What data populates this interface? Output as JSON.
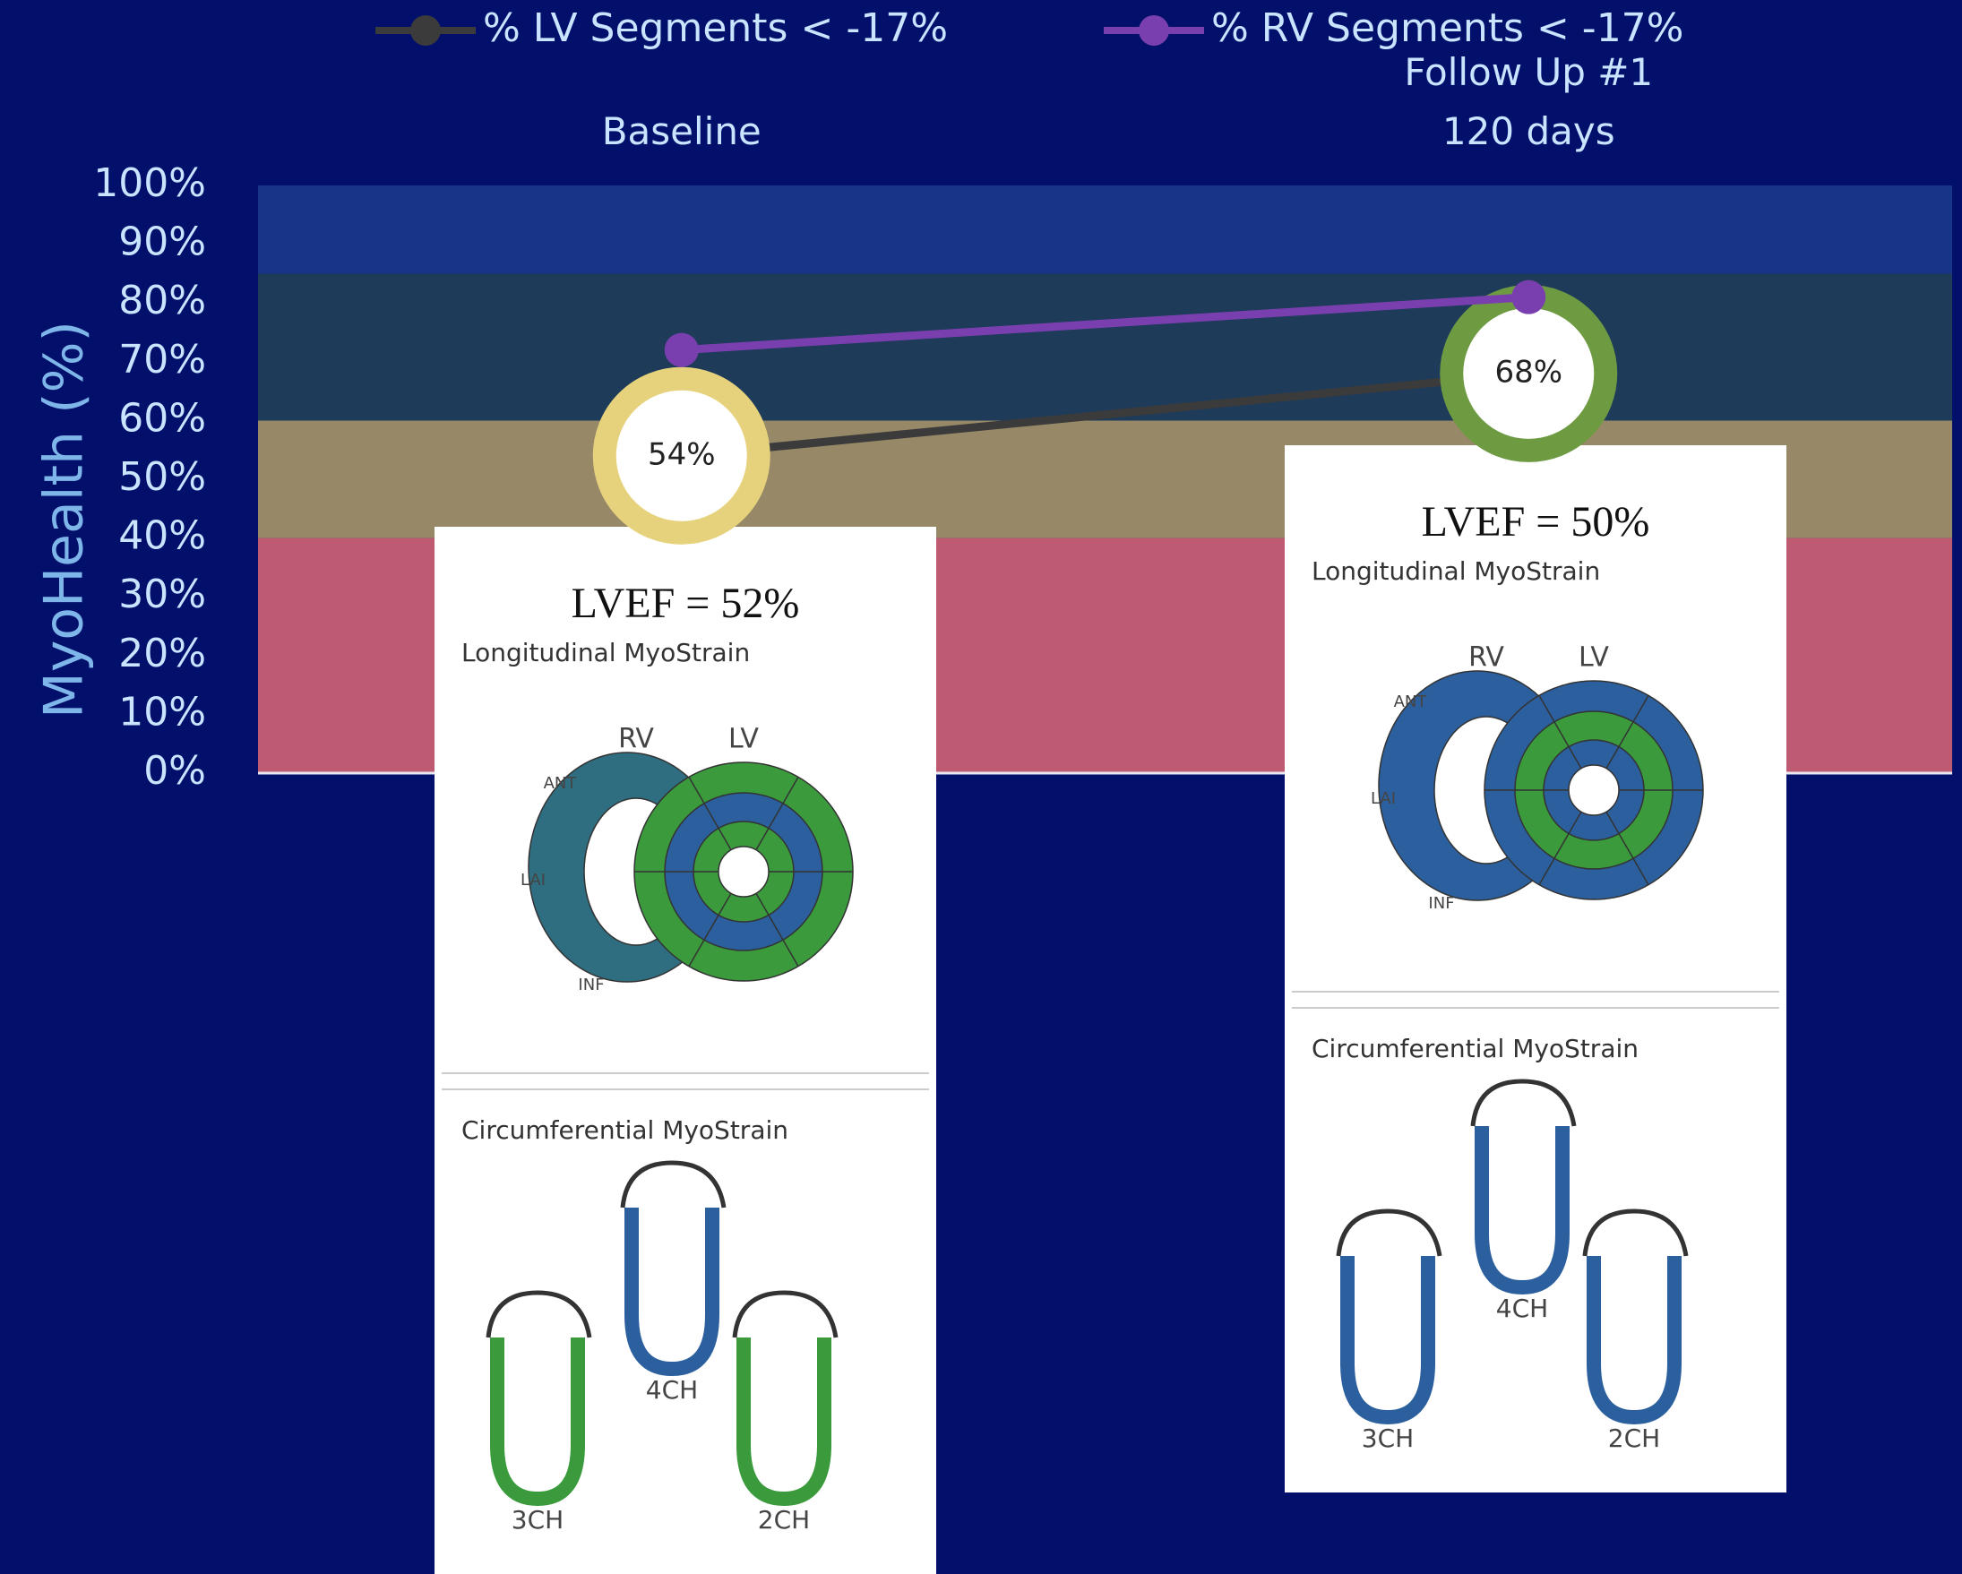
{
  "chart_data": {
    "type": "line",
    "y_label": "MyoHealth (%)",
    "categories": [
      "Baseline",
      "Follow Up #1\n120 days"
    ],
    "ylim": [
      0,
      100
    ],
    "yticks": [
      {
        "value": 0,
        "label": "0%"
      },
      {
        "value": 10,
        "label": "10%"
      },
      {
        "value": 20,
        "label": "20%"
      },
      {
        "value": 30,
        "label": "30%"
      },
      {
        "value": 40,
        "label": "40%"
      },
      {
        "value": 50,
        "label": "50%"
      },
      {
        "value": 60,
        "label": "60%"
      },
      {
        "value": 70,
        "label": "70%"
      },
      {
        "value": 80,
        "label": "80%"
      },
      {
        "value": 90,
        "label": "90%"
      },
      {
        "value": 100,
        "label": "100%"
      }
    ],
    "bands": [
      {
        "from": 0,
        "to": 40,
        "color": "#bf5a73"
      },
      {
        "from": 40,
        "to": 60,
        "color": "#978867"
      },
      {
        "from": 60,
        "to": 85,
        "color": "#1f3b5a"
      },
      {
        "from": 85,
        "to": 100,
        "color": "#183488"
      }
    ],
    "series": [
      {
        "name": "% LV Segments < -17%",
        "color": "#3b3b3b",
        "values": [
          54,
          68
        ],
        "value_labels": [
          "54%",
          "68%"
        ],
        "marker_colors": [
          "#e6d27c",
          "#6e9a42"
        ]
      },
      {
        "name": "% RV Segments < -17%",
        "color": "#7a3fae",
        "values": [
          72,
          81
        ]
      }
    ],
    "panels": [
      {
        "lvef": "LVEF = 52%",
        "longitudinal": "Longitudinal MyoStrain",
        "circumferential": "Circumferential MyoStrain",
        "ring_labels": [
          "RV",
          "LV",
          "ANT",
          "LAI",
          "INF"
        ],
        "views": [
          "4CH",
          "3CH",
          "2CH"
        ]
      },
      {
        "lvef": "LVEF = 50%",
        "longitudinal": "Longitudinal MyoStrain",
        "circumferential": "Circumferential MyoStrain",
        "ring_labels": [
          "RV",
          "LV",
          "ANT",
          "LAI",
          "INF"
        ],
        "views": [
          "4CH",
          "3CH",
          "2CH"
        ]
      }
    ]
  }
}
